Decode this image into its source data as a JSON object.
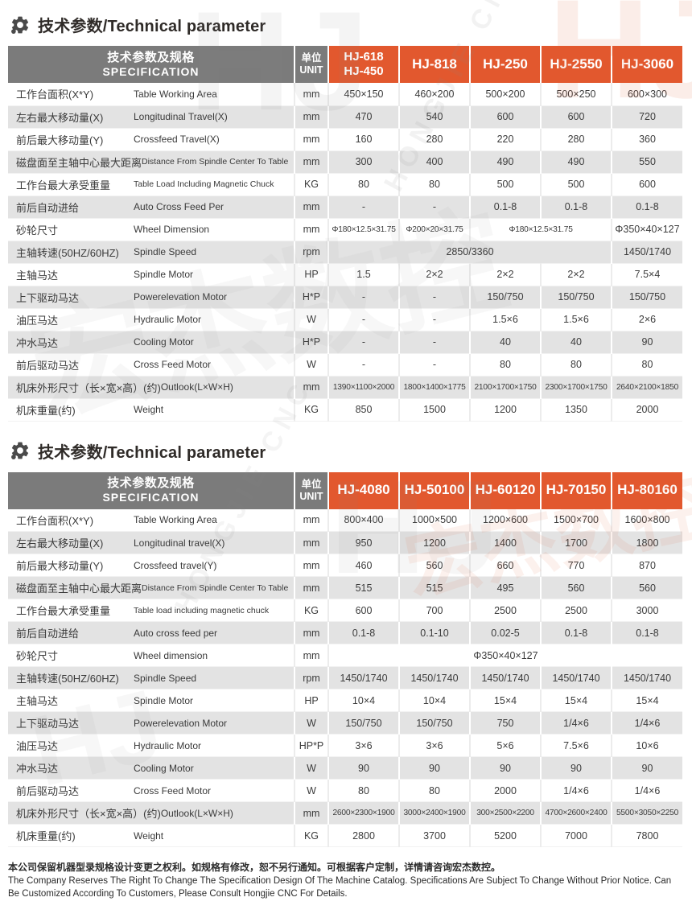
{
  "watermark": {
    "logo": "HJ",
    "brand_zh": "宏杰数控",
    "brand_en": "HONGJIE CNC"
  },
  "footer": {
    "zh": "本公司保留机器型录规格设计变更之权利。如规格有修改，恕不另行通知。可根据客户定制，详情请咨询宏杰数控。",
    "en": "The Company Reserves The Right To Change The Specification Design Of The Machine Catalog. Specifications Are Subject To Change Without Prior Notice. Can Be Customized According To Customers, Please Consult Hongjie CNC For Details."
  },
  "tables": [
    {
      "title": "技术参数/Technical parameter",
      "header": {
        "spec_zh": "技术参数及规格",
        "spec_en": "SPECIFICATION",
        "unit": "单位\nUNIT",
        "models": [
          "HJ-618\nHJ-450",
          "HJ-818",
          "HJ-250",
          "HJ-2550",
          "HJ-3060"
        ]
      },
      "rows": [
        {
          "zh": "工作台面积(X*Y)",
          "en": "Table Working Area",
          "unit": "mm",
          "cells": [
            {
              "v": "450×150"
            },
            {
              "v": "460×200"
            },
            {
              "v": "500×200"
            },
            {
              "v": "500×250"
            },
            {
              "v": "600×300"
            }
          ]
        },
        {
          "zh": "左右最大移动量(X)",
          "en": "Longitudinal Travel(X)",
          "unit": "mm",
          "cells": [
            {
              "v": "470"
            },
            {
              "v": "540"
            },
            {
              "v": "600"
            },
            {
              "v": "600"
            },
            {
              "v": "720"
            }
          ]
        },
        {
          "zh": "前后最大移动量(Y)",
          "en": "Crossfeed Travel(X)",
          "unit": "mm",
          "cells": [
            {
              "v": "160"
            },
            {
              "v": "280"
            },
            {
              "v": "220"
            },
            {
              "v": "280"
            },
            {
              "v": "360"
            }
          ]
        },
        {
          "zh": "磁盘面至主轴中心最大距离",
          "en": "Distance From Spindle Center To Table",
          "unit": "mm",
          "cells": [
            {
              "v": "300"
            },
            {
              "v": "400"
            },
            {
              "v": "490"
            },
            {
              "v": "490"
            },
            {
              "v": "550"
            }
          ]
        },
        {
          "zh": "工作台最大承受重量",
          "en": "Table Load Including Magnetic Chuck",
          "unit": "KG",
          "cells": [
            {
              "v": "80"
            },
            {
              "v": "80"
            },
            {
              "v": "500"
            },
            {
              "v": "500"
            },
            {
              "v": "600"
            }
          ]
        },
        {
          "zh": "前后自动进给",
          "en": "Auto Cross Feed Per",
          "unit": "mm",
          "cells": [
            {
              "v": "-"
            },
            {
              "v": "-"
            },
            {
              "v": "0.1-8"
            },
            {
              "v": "0.1-8"
            },
            {
              "v": "0.1-8"
            }
          ]
        },
        {
          "zh": "砂轮尺寸",
          "en": "Wheel Dimension",
          "unit": "mm",
          "cells": [
            {
              "v": "Φ180×12.5×31.75"
            },
            {
              "v": "Φ200×20×31.75"
            },
            {
              "v": "Φ180×12.5×31.75",
              "s": 2
            },
            {
              "v": "Φ350×40×127"
            }
          ]
        },
        {
          "zh": "主轴转速(50HZ/60HZ)",
          "en": "Spindle Speed",
          "unit": "rpm",
          "cells": [
            {
              "v": "2850/3360",
              "s": 4
            },
            {
              "v": "1450/1740"
            }
          ]
        },
        {
          "zh": "主轴马达",
          "en": "Spindle Motor",
          "unit": "HP",
          "cells": [
            {
              "v": "1.5"
            },
            {
              "v": "2×2"
            },
            {
              "v": "2×2"
            },
            {
              "v": "2×2"
            },
            {
              "v": "7.5×4"
            }
          ]
        },
        {
          "zh": "上下驱动马达",
          "en": "Powerelevation Motor",
          "unit": "H*P",
          "cells": [
            {
              "v": "-"
            },
            {
              "v": "-"
            },
            {
              "v": "150/750"
            },
            {
              "v": "150/750"
            },
            {
              "v": "150/750"
            }
          ]
        },
        {
          "zh": "油压马达",
          "en": "Hydraulic Motor",
          "unit": "W",
          "cells": [
            {
              "v": "-"
            },
            {
              "v": "-"
            },
            {
              "v": "1.5×6"
            },
            {
              "v": "1.5×6"
            },
            {
              "v": "2×6"
            }
          ]
        },
        {
          "zh": "冲水马达",
          "en": "Cooling Motor",
          "unit": "H*P",
          "cells": [
            {
              "v": "-"
            },
            {
              "v": "-"
            },
            {
              "v": "40"
            },
            {
              "v": "40"
            },
            {
              "v": "90"
            }
          ]
        },
        {
          "zh": "前后驱动马达",
          "en": "Cross Feed Motor",
          "unit": "W",
          "cells": [
            {
              "v": "-"
            },
            {
              "v": "-"
            },
            {
              "v": "80"
            },
            {
              "v": "80"
            },
            {
              "v": "80"
            }
          ]
        },
        {
          "zh": "机床外形尺寸（长×宽×高）(约)",
          "en": "Outlook(L×W×H)",
          "unit": "mm",
          "cells": [
            {
              "v": "1390×1100×2000"
            },
            {
              "v": "1800×1400×1775"
            },
            {
              "v": "2100×1700×1750"
            },
            {
              "v": "2300×1700×1750"
            },
            {
              "v": "2640×2100×1850"
            }
          ]
        },
        {
          "zh": "机床重量(约)",
          "en": "Weight",
          "unit": "KG",
          "cells": [
            {
              "v": "850"
            },
            {
              "v": "1500"
            },
            {
              "v": "1200"
            },
            {
              "v": "1350"
            },
            {
              "v": "2000"
            }
          ]
        }
      ]
    },
    {
      "title": "技术参数/Technical parameter",
      "header": {
        "spec_zh": "技术参数及规格",
        "spec_en": "SPECIFICATION",
        "unit": "单位\nUNIT",
        "models": [
          "HJ-4080",
          "HJ-50100",
          "HJ-60120",
          "HJ-70150",
          "HJ-80160"
        ]
      },
      "rows": [
        {
          "zh": "工作台面积(X*Y)",
          "en": "Table Working Area",
          "unit": "mm",
          "cells": [
            {
              "v": "800×400"
            },
            {
              "v": "1000×500"
            },
            {
              "v": "1200×600"
            },
            {
              "v": "1500×700"
            },
            {
              "v": "1600×800"
            }
          ]
        },
        {
          "zh": "左右最大移动量(X)",
          "en": "Longitudinal travel(X)",
          "unit": "mm",
          "cells": [
            {
              "v": "950"
            },
            {
              "v": "1200"
            },
            {
              "v": "1400"
            },
            {
              "v": "1700"
            },
            {
              "v": "1800"
            }
          ]
        },
        {
          "zh": "前后最大移动量(Y)",
          "en": "Crossfeed travel(Y)",
          "unit": "mm",
          "cells": [
            {
              "v": "460"
            },
            {
              "v": "560"
            },
            {
              "v": "660"
            },
            {
              "v": "770"
            },
            {
              "v": "870"
            }
          ]
        },
        {
          "zh": "磁盘面至主轴中心最大距离",
          "en": "Distance From Spindle Center To Table",
          "unit": "mm",
          "cells": [
            {
              "v": "515"
            },
            {
              "v": "515"
            },
            {
              "v": "495"
            },
            {
              "v": "560"
            },
            {
              "v": "560"
            }
          ]
        },
        {
          "zh": "工作台最大承受重量",
          "en": "Table load including magnetic chuck",
          "unit": "KG",
          "cells": [
            {
              "v": "600"
            },
            {
              "v": "700"
            },
            {
              "v": "2500"
            },
            {
              "v": "2500"
            },
            {
              "v": "3000"
            }
          ]
        },
        {
          "zh": "前后自动进给",
          "en": "Auto cross feed per",
          "unit": "mm",
          "cells": [
            {
              "v": "0.1-8"
            },
            {
              "v": "0.1-10"
            },
            {
              "v": "0.02-5"
            },
            {
              "v": "0.1-8"
            },
            {
              "v": "0.1-8"
            }
          ]
        },
        {
          "zh": "砂轮尺寸",
          "en": "Wheel dimension",
          "unit": "mm",
          "cells": [
            {
              "v": "Φ350×40×127",
              "s": 5
            }
          ]
        },
        {
          "zh": "主轴转速(50HZ/60HZ)",
          "en": "Spindle Speed",
          "unit": "rpm",
          "cells": [
            {
              "v": "1450/1740"
            },
            {
              "v": "1450/1740"
            },
            {
              "v": "1450/1740"
            },
            {
              "v": "1450/1740"
            },
            {
              "v": "1450/1740"
            }
          ]
        },
        {
          "zh": "主轴马达",
          "en": "Spindle Motor",
          "unit": "HP",
          "cells": [
            {
              "v": "10×4"
            },
            {
              "v": "10×4"
            },
            {
              "v": "15×4"
            },
            {
              "v": "15×4"
            },
            {
              "v": "15×4"
            }
          ]
        },
        {
          "zh": "上下驱动马达",
          "en": "Powerelevation Motor",
          "unit": "W",
          "cells": [
            {
              "v": "150/750"
            },
            {
              "v": "150/750"
            },
            {
              "v": "750"
            },
            {
              "v": "1/4×6"
            },
            {
              "v": "1/4×6"
            }
          ]
        },
        {
          "zh": "油压马达",
          "en": "Hydraulic Motor",
          "unit": "HP*P",
          "cells": [
            {
              "v": "3×6"
            },
            {
              "v": "3×6"
            },
            {
              "v": "5×6"
            },
            {
              "v": "7.5×6"
            },
            {
              "v": "10×6"
            }
          ]
        },
        {
          "zh": "冲水马达",
          "en": "Cooling Motor",
          "unit": "W",
          "cells": [
            {
              "v": "90"
            },
            {
              "v": "90"
            },
            {
              "v": "90"
            },
            {
              "v": "90"
            },
            {
              "v": "90"
            }
          ]
        },
        {
          "zh": "前后驱动马达",
          "en": "Cross Feed Motor",
          "unit": "W",
          "cells": [
            {
              "v": "80"
            },
            {
              "v": "80"
            },
            {
              "v": "2000"
            },
            {
              "v": "1/4×6"
            },
            {
              "v": "1/4×6"
            }
          ]
        },
        {
          "zh": "机床外形尺寸（长×宽×高）(约)",
          "en": "Outlook(L×W×H)",
          "unit": "mm",
          "cells": [
            {
              "v": "2600×2300×1900"
            },
            {
              "v": "3000×2400×1900"
            },
            {
              "v": "300×2500×2200"
            },
            {
              "v": "4700×2600×2400"
            },
            {
              "v": "5500×3050×2250"
            }
          ]
        },
        {
          "zh": "机床重量(约)",
          "en": "Weight",
          "unit": "KG",
          "cells": [
            {
              "v": "2800"
            },
            {
              "v": "3700"
            },
            {
              "v": "5200"
            },
            {
              "v": "7000"
            },
            {
              "v": "7800"
            }
          ]
        }
      ]
    }
  ]
}
